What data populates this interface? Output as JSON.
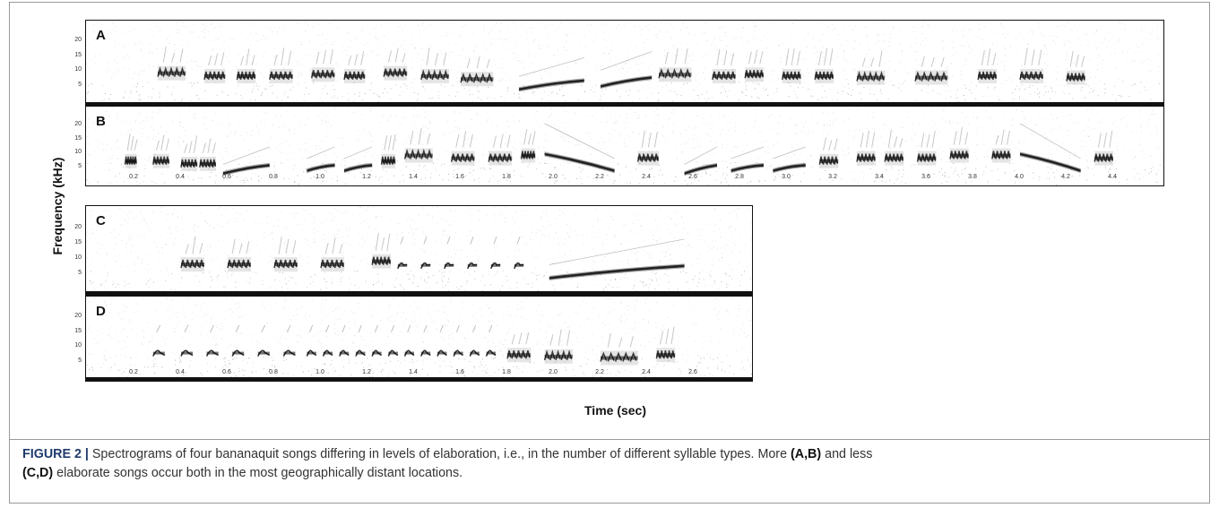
{
  "figure": {
    "y_axis_title": "Frequency (kHz)",
    "x_axis_title": "Time (sec)"
  },
  "chart_data": [
    {
      "type": "heatmap",
      "panel": "A",
      "ylim": [
        0,
        22
      ],
      "yticks": [
        "5",
        "10",
        "15",
        "20"
      ],
      "xticks": [],
      "syllables": [
        {
          "t": 0.3,
          "d": 0.12,
          "f0": 9,
          "f1": 10,
          "kind": "broad"
        },
        {
          "t": 0.5,
          "d": 0.09,
          "f0": 9,
          "f1": 8,
          "kind": "broad"
        },
        {
          "t": 0.64,
          "d": 0.08,
          "f0": 8,
          "f1": 9,
          "kind": "broad"
        },
        {
          "t": 0.78,
          "d": 0.1,
          "f0": 9,
          "f1": 8,
          "kind": "broad"
        },
        {
          "t": 0.96,
          "d": 0.1,
          "f0": 9,
          "f1": 9,
          "kind": "broad"
        },
        {
          "t": 1.1,
          "d": 0.09,
          "f0": 8,
          "f1": 9,
          "kind": "broad"
        },
        {
          "t": 1.27,
          "d": 0.1,
          "f0": 10,
          "f1": 9,
          "kind": "broad"
        },
        {
          "t": 1.43,
          "d": 0.12,
          "f0": 9,
          "f1": 8,
          "kind": "broad"
        },
        {
          "t": 1.6,
          "d": 0.14,
          "f0": 8,
          "f1": 7,
          "kind": "broad"
        },
        {
          "t": 1.85,
          "d": 0.28,
          "f0": 4,
          "f1": 7,
          "kind": "sweep"
        },
        {
          "t": 2.2,
          "d": 0.22,
          "f0": 5,
          "f1": 8,
          "kind": "sweep"
        },
        {
          "t": 2.45,
          "d": 0.14,
          "f0": 9,
          "f1": 9,
          "kind": "broad"
        },
        {
          "t": 2.68,
          "d": 0.1,
          "f0": 9,
          "f1": 8,
          "kind": "broad"
        },
        {
          "t": 2.82,
          "d": 0.08,
          "f0": 9,
          "f1": 9,
          "kind": "broad"
        },
        {
          "t": 2.98,
          "d": 0.08,
          "f0": 9,
          "f1": 8,
          "kind": "broad"
        },
        {
          "t": 3.12,
          "d": 0.08,
          "f0": 8,
          "f1": 9,
          "kind": "broad"
        },
        {
          "t": 3.3,
          "d": 0.12,
          "f0": 9,
          "f1": 7,
          "kind": "broad"
        },
        {
          "t": 3.55,
          "d": 0.14,
          "f0": 8,
          "f1": 8,
          "kind": "broad"
        },
        {
          "t": 3.82,
          "d": 0.08,
          "f0": 8,
          "f1": 9,
          "kind": "broad"
        },
        {
          "t": 4.0,
          "d": 0.1,
          "f0": 9,
          "f1": 8,
          "kind": "broad"
        },
        {
          "t": 4.2,
          "d": 0.08,
          "f0": 8,
          "f1": 8,
          "kind": "broad"
        }
      ]
    },
    {
      "type": "heatmap",
      "panel": "B",
      "ylim": [
        0,
        22
      ],
      "yticks": [
        "5",
        "10",
        "15",
        "20"
      ],
      "xticks": [
        "0.2",
        "0.4",
        "0.6",
        "0.8",
        "1.0",
        "1.2",
        "1.4",
        "1.6",
        "1.8",
        "2.0",
        "2.2",
        "2.4",
        "2.6",
        "2.8",
        "3.0",
        "3.2",
        "3.4",
        "3.6",
        "3.8",
        "4.0",
        "4.2",
        "4.4"
      ],
      "syllables": [
        {
          "t": 0.16,
          "d": 0.05,
          "f0": 8,
          "f1": 7,
          "kind": "broad"
        },
        {
          "t": 0.28,
          "d": 0.07,
          "f0": 8,
          "f1": 7,
          "kind": "broad"
        },
        {
          "t": 0.4,
          "d": 0.07,
          "f0": 7,
          "f1": 6,
          "kind": "broad"
        },
        {
          "t": 0.48,
          "d": 0.07,
          "f0": 7,
          "f1": 6,
          "kind": "broad"
        },
        {
          "t": 0.58,
          "d": 0.2,
          "f0": 3,
          "f1": 6,
          "kind": "sweep"
        },
        {
          "t": 0.94,
          "d": 0.12,
          "f0": 4,
          "f1": 6,
          "kind": "sweep"
        },
        {
          "t": 1.1,
          "d": 0.12,
          "f0": 4,
          "f1": 6,
          "kind": "sweep"
        },
        {
          "t": 1.26,
          "d": 0.06,
          "f0": 7,
          "f1": 8,
          "kind": "broad"
        },
        {
          "t": 1.36,
          "d": 0.12,
          "f0": 10,
          "f1": 9,
          "kind": "broad"
        },
        {
          "t": 1.56,
          "d": 0.1,
          "f0": 9,
          "f1": 8,
          "kind": "broad"
        },
        {
          "t": 1.72,
          "d": 0.1,
          "f0": 9,
          "f1": 8,
          "kind": "broad"
        },
        {
          "t": 1.86,
          "d": 0.06,
          "f0": 10,
          "f1": 9,
          "kind": "broad"
        },
        {
          "t": 1.96,
          "d": 0.3,
          "f0": 10,
          "f1": 4,
          "kind": "sweep"
        },
        {
          "t": 2.36,
          "d": 0.09,
          "f0": 9,
          "f1": 8,
          "kind": "broad"
        },
        {
          "t": 2.56,
          "d": 0.14,
          "f0": 3,
          "f1": 6,
          "kind": "sweep"
        },
        {
          "t": 2.76,
          "d": 0.14,
          "f0": 4,
          "f1": 6,
          "kind": "sweep"
        },
        {
          "t": 2.94,
          "d": 0.14,
          "f0": 4,
          "f1": 6,
          "kind": "sweep"
        },
        {
          "t": 3.14,
          "d": 0.08,
          "f0": 7,
          "f1": 8,
          "kind": "broad"
        },
        {
          "t": 3.3,
          "d": 0.08,
          "f0": 9,
          "f1": 8,
          "kind": "broad"
        },
        {
          "t": 3.42,
          "d": 0.08,
          "f0": 9,
          "f1": 8,
          "kind": "broad"
        },
        {
          "t": 3.56,
          "d": 0.08,
          "f0": 9,
          "f1": 8,
          "kind": "broad"
        },
        {
          "t": 3.7,
          "d": 0.08,
          "f0": 10,
          "f1": 9,
          "kind": "broad"
        },
        {
          "t": 3.88,
          "d": 0.08,
          "f0": 10,
          "f1": 9,
          "kind": "broad"
        },
        {
          "t": 4.0,
          "d": 0.26,
          "f0": 10,
          "f1": 4,
          "kind": "sweep"
        },
        {
          "t": 4.32,
          "d": 0.08,
          "f0": 9,
          "f1": 8,
          "kind": "broad"
        }
      ]
    },
    {
      "type": "heatmap",
      "panel": "C",
      "ylim": [
        0,
        22
      ],
      "yticks": [
        "5",
        "10",
        "15",
        "20"
      ],
      "xticks": [],
      "syllables": [
        {
          "t": 0.4,
          "d": 0.1,
          "f0": 9,
          "f1": 8,
          "kind": "broad"
        },
        {
          "t": 0.6,
          "d": 0.1,
          "f0": 9,
          "f1": 8,
          "kind": "broad"
        },
        {
          "t": 0.8,
          "d": 0.1,
          "f0": 9,
          "f1": 8,
          "kind": "broad"
        },
        {
          "t": 1.0,
          "d": 0.1,
          "f0": 9,
          "f1": 8,
          "kind": "broad"
        },
        {
          "t": 1.22,
          "d": 0.08,
          "f0": 10,
          "f1": 9,
          "kind": "broad"
        },
        {
          "t": 1.33,
          "d": 0.04,
          "f0": 8,
          "f1": 9,
          "kind": "note"
        },
        {
          "t": 1.43,
          "d": 0.04,
          "f0": 8,
          "f1": 9,
          "kind": "note"
        },
        {
          "t": 1.53,
          "d": 0.04,
          "f0": 8,
          "f1": 9,
          "kind": "note"
        },
        {
          "t": 1.63,
          "d": 0.04,
          "f0": 8,
          "f1": 9,
          "kind": "note"
        },
        {
          "t": 1.73,
          "d": 0.04,
          "f0": 8,
          "f1": 9,
          "kind": "note"
        },
        {
          "t": 1.83,
          "d": 0.04,
          "f0": 8,
          "f1": 9,
          "kind": "note"
        },
        {
          "t": 1.98,
          "d": 0.58,
          "f0": 4,
          "f1": 8,
          "kind": "sweep"
        }
      ]
    },
    {
      "type": "heatmap",
      "panel": "D",
      "ylim": [
        0,
        22
      ],
      "yticks": [
        "5",
        "10",
        "15",
        "20"
      ],
      "xticks": [
        "0.2",
        "0.4",
        "0.6",
        "0.8",
        "1.0",
        "1.2",
        "1.4",
        "1.6",
        "1.8",
        "2.0",
        "2.2",
        "2.4",
        "2.6"
      ],
      "syllables": [
        {
          "t": 0.28,
          "d": 0.05,
          "f0": 8,
          "f1": 8,
          "kind": "note"
        },
        {
          "t": 0.4,
          "d": 0.05,
          "f0": 8,
          "f1": 8,
          "kind": "note"
        },
        {
          "t": 0.51,
          "d": 0.05,
          "f0": 8,
          "f1": 8,
          "kind": "note"
        },
        {
          "t": 0.62,
          "d": 0.05,
          "f0": 8,
          "f1": 8,
          "kind": "note"
        },
        {
          "t": 0.73,
          "d": 0.05,
          "f0": 8,
          "f1": 8,
          "kind": "note"
        },
        {
          "t": 0.84,
          "d": 0.05,
          "f0": 8,
          "f1": 8,
          "kind": "note"
        },
        {
          "t": 0.94,
          "d": 0.04,
          "f0": 8,
          "f1": 8,
          "kind": "note"
        },
        {
          "t": 1.01,
          "d": 0.04,
          "f0": 8,
          "f1": 8,
          "kind": "note"
        },
        {
          "t": 1.08,
          "d": 0.04,
          "f0": 8,
          "f1": 8,
          "kind": "note"
        },
        {
          "t": 1.15,
          "d": 0.04,
          "f0": 8,
          "f1": 8,
          "kind": "note"
        },
        {
          "t": 1.22,
          "d": 0.04,
          "f0": 8,
          "f1": 8,
          "kind": "note"
        },
        {
          "t": 1.29,
          "d": 0.04,
          "f0": 8,
          "f1": 8,
          "kind": "note"
        },
        {
          "t": 1.36,
          "d": 0.04,
          "f0": 8,
          "f1": 8,
          "kind": "note"
        },
        {
          "t": 1.43,
          "d": 0.04,
          "f0": 8,
          "f1": 8,
          "kind": "note"
        },
        {
          "t": 1.5,
          "d": 0.04,
          "f0": 8,
          "f1": 8,
          "kind": "note"
        },
        {
          "t": 1.57,
          "d": 0.04,
          "f0": 8,
          "f1": 8,
          "kind": "note"
        },
        {
          "t": 1.64,
          "d": 0.04,
          "f0": 8,
          "f1": 8,
          "kind": "note"
        },
        {
          "t": 1.71,
          "d": 0.04,
          "f0": 8,
          "f1": 8,
          "kind": "note"
        },
        {
          "t": 1.8,
          "d": 0.1,
          "f0": 9,
          "f1": 6,
          "kind": "broad"
        },
        {
          "t": 1.96,
          "d": 0.12,
          "f0": 7,
          "f1": 7,
          "kind": "broad"
        },
        {
          "t": 2.2,
          "d": 0.16,
          "f0": 7,
          "f1": 6,
          "kind": "broad"
        },
        {
          "t": 2.44,
          "d": 0.08,
          "f0": 8,
          "f1": 7,
          "kind": "broad"
        }
      ]
    }
  ],
  "caption": {
    "label": "FIGURE 2 |",
    "part1": " Spectrograms of four bananaquit songs differing in levels of elaboration, i.e., in the number of different syllable types. More ",
    "bold1": "(A,B)",
    "part2": " and less",
    "bold2": "(C,D)",
    "part3": " elaborate songs occur both in the most geographically distant locations."
  }
}
